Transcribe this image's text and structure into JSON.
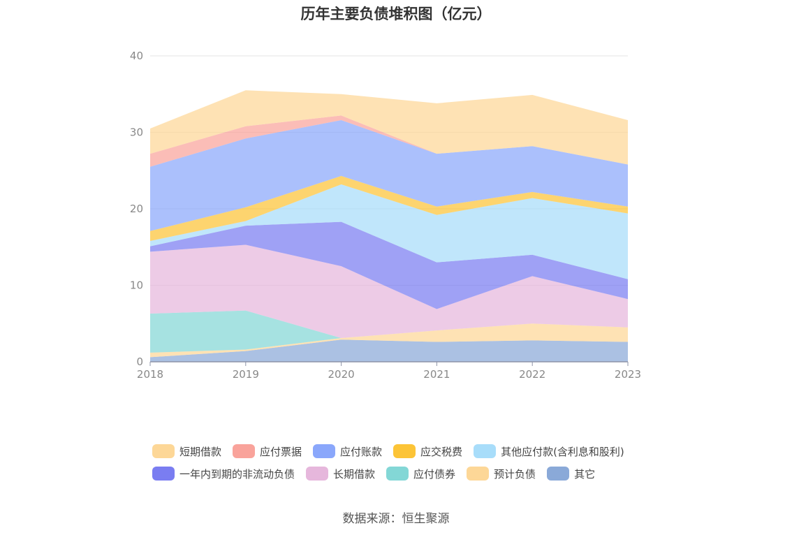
{
  "source_text": "数据来源：恒生聚源",
  "colors": {
    "短期借款": "#fdd797",
    "应付票据": "#f9a39b",
    "应付账款": "#8aa7fb",
    "应交税费": "#fcc437",
    "其他应付款(含利息和股利)": "#a8ddfa",
    "一年内到期的非流动负债": "#7a7df1",
    "长期借款": "#e6b7dc",
    "应付债券": "#83d7d6",
    "预计负债": "#fdd797",
    "其它": "#8aa9d8"
  },
  "chart_data": {
    "type": "area",
    "stacked": true,
    "title": "历年主要负债堆积图（亿元）",
    "x": [
      "2018",
      "2019",
      "2020",
      "2021",
      "2022",
      "2023"
    ],
    "ylim": [
      0,
      40
    ],
    "yticks": [
      0,
      10,
      20,
      30,
      40
    ],
    "grid": true,
    "legend_position": "bottom",
    "series": [
      {
        "name": "其它",
        "values": [
          0.6,
          1.4,
          2.9,
          2.6,
          2.8,
          2.6
        ]
      },
      {
        "name": "预计负债",
        "values": [
          0.6,
          0.2,
          0.2,
          1.5,
          2.2,
          1.9
        ]
      },
      {
        "name": "应付债券",
        "values": [
          5.1,
          5.1,
          0,
          0,
          0,
          0
        ]
      },
      {
        "name": "长期借款",
        "values": [
          8.1,
          8.6,
          9.4,
          2.8,
          6.2,
          3.7
        ]
      },
      {
        "name": "一年内到期的非流动负债",
        "values": [
          0.7,
          2.5,
          5.8,
          6.1,
          2.8,
          2.6
        ]
      },
      {
        "name": "其他应付款(含利息和股利)",
        "values": [
          0.7,
          0.6,
          4.9,
          6.2,
          7.4,
          8.6
        ]
      },
      {
        "name": "应交税费",
        "values": [
          1.3,
          1.8,
          1.1,
          1.1,
          0.8,
          0.9
        ]
      },
      {
        "name": "应付账款",
        "values": [
          8.4,
          9.0,
          7.3,
          6.9,
          6.0,
          5.5
        ]
      },
      {
        "name": "应付票据",
        "values": [
          1.7,
          1.6,
          0.6,
          0,
          0,
          0
        ]
      },
      {
        "name": "短期借款",
        "values": [
          3.3,
          4.7,
          2.8,
          6.6,
          6.7,
          5.8
        ]
      }
    ]
  },
  "legend": {
    "row1": [
      "短期借款",
      "应付票据",
      "应付账款",
      "应交税费",
      "其他应付款(含利息和股利)"
    ],
    "row2": [
      "一年内到期的非流动负债",
      "长期借款",
      "应付债券",
      "预计负债",
      "其它"
    ]
  }
}
